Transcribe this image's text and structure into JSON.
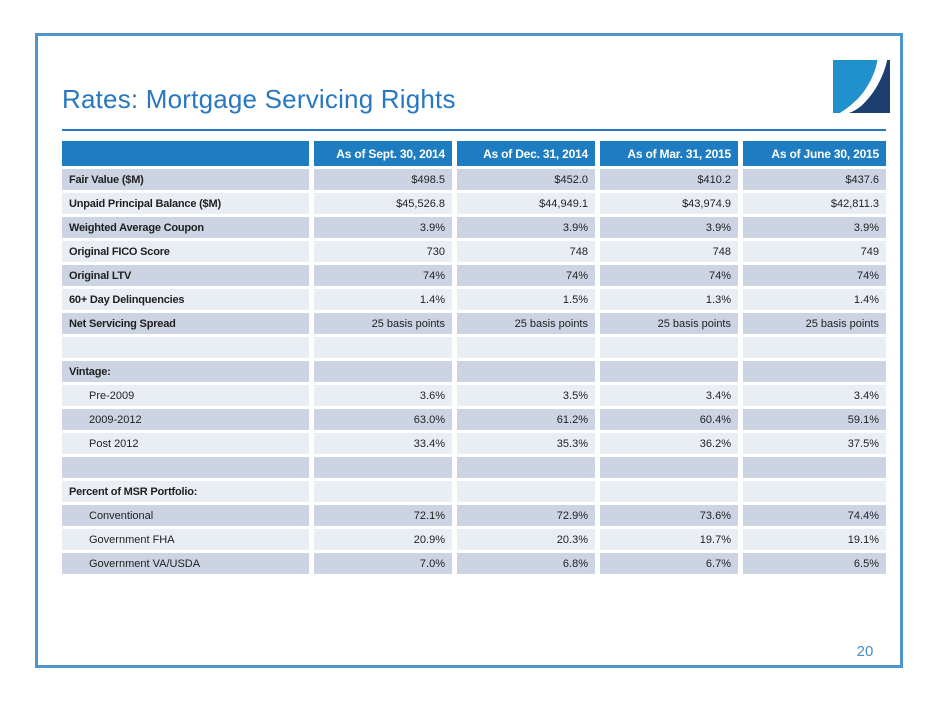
{
  "slide": {
    "title": "Rates: Mortgage Servicing Rights",
    "page_number": "20"
  },
  "colors": {
    "accent_blue": "#2777c2",
    "frame_blue": "#4e94cd",
    "header_blue": "#1e7cc0",
    "row_dark": "#ccd4e3",
    "row_light": "#e9edf4",
    "text": "#1f1f1f",
    "page_number_blue": "#4a90c8",
    "logo_light_blue": "#2191cd",
    "logo_navy": "#1d3e6e"
  },
  "table": {
    "columns": [
      "",
      "As of Sept. 30, 2014",
      "As of Dec. 31, 2014",
      "As of Mar. 31, 2015",
      "As of June 30, 2015"
    ],
    "rows": [
      {
        "label": "Fair Value ($M)",
        "indent": false,
        "values": [
          "$498.5",
          "$452.0",
          "$410.2",
          "$437.6"
        ]
      },
      {
        "label": "Unpaid Principal Balance ($M)",
        "indent": false,
        "values": [
          "$45,526.8",
          "$44,949.1",
          "$43,974.9",
          "$42,811.3"
        ]
      },
      {
        "label": "Weighted Average Coupon",
        "indent": false,
        "values": [
          "3.9%",
          "3.9%",
          "3.9%",
          "3.9%"
        ]
      },
      {
        "label": "Original FICO Score",
        "indent": false,
        "values": [
          "730",
          "748",
          "748",
          "749"
        ]
      },
      {
        "label": "Original LTV",
        "indent": false,
        "values": [
          "74%",
          "74%",
          "74%",
          "74%"
        ]
      },
      {
        "label": "60+ Day Delinquencies",
        "indent": false,
        "values": [
          "1.4%",
          "1.5%",
          "1.3%",
          "1.4%"
        ]
      },
      {
        "label": "Net Servicing Spread",
        "indent": false,
        "values": [
          "25 basis points",
          "25 basis points",
          "25 basis points",
          "25 basis points"
        ]
      },
      {
        "label": "",
        "indent": false,
        "values": [
          "",
          "",
          "",
          ""
        ]
      },
      {
        "label": "Vintage:",
        "indent": false,
        "values": [
          "",
          "",
          "",
          ""
        ]
      },
      {
        "label": "Pre-2009",
        "indent": true,
        "values": [
          "3.6%",
          "3.5%",
          "3.4%",
          "3.4%"
        ]
      },
      {
        "label": "2009-2012",
        "indent": true,
        "values": [
          "63.0%",
          "61.2%",
          "60.4%",
          "59.1%"
        ]
      },
      {
        "label": "Post 2012",
        "indent": true,
        "values": [
          "33.4%",
          "35.3%",
          "36.2%",
          "37.5%"
        ]
      },
      {
        "label": "",
        "indent": false,
        "values": [
          "",
          "",
          "",
          ""
        ]
      },
      {
        "label": "Percent of MSR Portfolio:",
        "indent": false,
        "values": [
          "",
          "",
          "",
          ""
        ]
      },
      {
        "label": "Conventional",
        "indent": true,
        "values": [
          "72.1%",
          "72.9%",
          "73.6%",
          "74.4%"
        ]
      },
      {
        "label": "Government FHA",
        "indent": true,
        "values": [
          "20.9%",
          "20.3%",
          "19.7%",
          "19.1%"
        ]
      },
      {
        "label": "Government VA/USDA",
        "indent": true,
        "values": [
          "7.0%",
          "6.8%",
          "6.7%",
          "6.5%"
        ]
      }
    ]
  }
}
